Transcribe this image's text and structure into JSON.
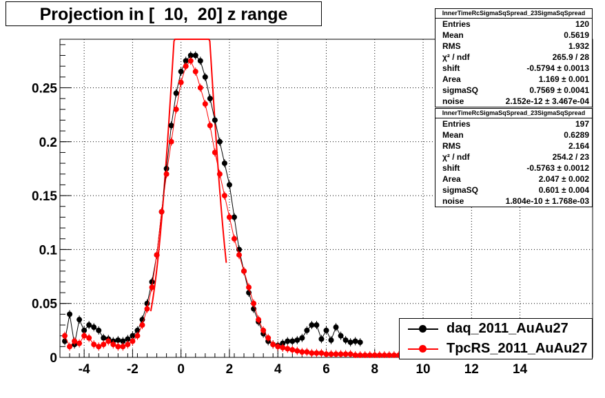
{
  "title": "Projection in [  10,  20] z range",
  "colors": {
    "series1": "#000000",
    "series2": "#ff0000",
    "fit2": "#ff0000"
  },
  "stats": [
    {
      "header": "InnerTimeRcSigmaSqSpread_23SigmaSqSpread",
      "rows": [
        {
          "key": "Entries",
          "value": "120"
        },
        {
          "key": "Mean",
          "value": "0.5619"
        },
        {
          "key": "RMS",
          "value": "1.932"
        },
        {
          "key": "χ² / ndf",
          "value": "265.9 / 28"
        },
        {
          "key": "shift",
          "value": "-0.5794 ± 0.0013"
        },
        {
          "key": "Area",
          "value": "1.169 ± 0.001"
        },
        {
          "key": "sigmaSQ",
          "value": "0.7569 ± 0.0041"
        },
        {
          "key": "noise",
          "value": "2.152e-12 ± 3.467e-04"
        }
      ]
    },
    {
      "header": "InnerTimeRcSigmaSqSpread_23SigmaSqSpread",
      "rows": [
        {
          "key": "Entries",
          "value": "197"
        },
        {
          "key": "Mean",
          "value": "0.6289"
        },
        {
          "key": "RMS",
          "value": "2.164"
        },
        {
          "key": "χ² / ndf",
          "value": "254.2 / 23"
        },
        {
          "key": "shift",
          "value": "-0.5763 ± 0.0012"
        },
        {
          "key": "Area",
          "value": "2.047 ± 0.002"
        },
        {
          "key": "sigmaSQ",
          "value": "0.601 ± 0.004"
        },
        {
          "key": "noise",
          "value": "1.804e-10 ± 1.768e-03"
        }
      ]
    }
  ],
  "legend": [
    {
      "label": "daq_2011_AuAu27"
    },
    {
      "label": "TpcRS_2011_AuAu27"
    }
  ],
  "chart_data": {
    "type": "scatter",
    "title": "Projection in [  10,  20] z range",
    "xlim": [
      -5,
      17
    ],
    "ylim": [
      0,
      0.295
    ],
    "x_ticks": [
      -4,
      -2,
      0,
      2,
      4,
      6,
      8,
      10,
      12,
      14
    ],
    "x_tick_labels": [
      "-4",
      "-2",
      "0",
      "2",
      "4",
      "6",
      "8",
      "10",
      "12",
      "14"
    ],
    "y_ticks": [
      0,
      0.05,
      0.1,
      0.15,
      0.2,
      0.25
    ],
    "y_tick_labels": [
      "0",
      "0.05",
      "0.1",
      "0.15",
      "0.2",
      "0.25"
    ],
    "grid": true,
    "legend_position": "bottom-right",
    "series": [
      {
        "name": "daq_2011_AuAu27",
        "color": "#000000",
        "x": [
          -4.8,
          -4.6,
          -4.4,
          -4.2,
          -4.0,
          -3.8,
          -3.6,
          -3.4,
          -3.2,
          -3.0,
          -2.8,
          -2.6,
          -2.4,
          -2.2,
          -2.0,
          -1.8,
          -1.6,
          -1.4,
          -1.2,
          -1.0,
          -0.8,
          -0.6,
          -0.4,
          -0.2,
          0.0,
          0.2,
          0.4,
          0.6,
          0.8,
          1.0,
          1.2,
          1.4,
          1.6,
          1.8,
          2.0,
          2.2,
          2.4,
          2.6,
          2.8,
          3.0,
          3.2,
          3.4,
          3.6,
          3.8,
          4.0,
          4.2,
          4.4,
          4.6,
          4.8,
          5.0,
          5.2,
          5.4,
          5.6,
          5.8,
          6.0,
          6.2,
          6.4,
          6.6,
          6.8,
          7.0,
          7.2,
          7.4
        ],
        "y": [
          0.015,
          0.04,
          0.012,
          0.035,
          0.025,
          0.03,
          0.028,
          0.025,
          0.018,
          0.017,
          0.015,
          0.016,
          0.015,
          0.017,
          0.02,
          0.025,
          0.035,
          0.05,
          0.07,
          0.095,
          0.135,
          0.175,
          0.215,
          0.245,
          0.265,
          0.275,
          0.28,
          0.28,
          0.275,
          0.26,
          0.24,
          0.22,
          0.2,
          0.18,
          0.16,
          0.13,
          0.1,
          0.08,
          0.06,
          0.045,
          0.033,
          0.022,
          0.015,
          0.012,
          0.011,
          0.013,
          0.015,
          0.015,
          0.016,
          0.018,
          0.025,
          0.03,
          0.03,
          0.017,
          0.025,
          0.016,
          0.028,
          0.02,
          0.016,
          0.014,
          0.015,
          0.014
        ]
      },
      {
        "name": "TpcRS_2011_AuAu27",
        "color": "#ff0000",
        "x": [
          -4.8,
          -4.6,
          -4.4,
          -4.2,
          -4.0,
          -3.8,
          -3.6,
          -3.4,
          -3.2,
          -3.0,
          -2.8,
          -2.6,
          -2.4,
          -2.2,
          -2.0,
          -1.8,
          -1.6,
          -1.4,
          -1.2,
          -1.0,
          -0.8,
          -0.6,
          -0.4,
          -0.2,
          0.0,
          0.2,
          0.4,
          0.6,
          0.8,
          1.0,
          1.2,
          1.4,
          1.6,
          1.8,
          2.0,
          2.2,
          2.4,
          2.6,
          2.8,
          3.0,
          3.2,
          3.4,
          3.6,
          3.8,
          4.0,
          4.2,
          4.4,
          4.6,
          4.8,
          5.0,
          5.2,
          5.4,
          5.6,
          5.8,
          6.0,
          6.2,
          6.4,
          6.6,
          6.8,
          7.0,
          7.2,
          7.4,
          7.6,
          7.8,
          8.0,
          8.2,
          8.4,
          8.6,
          8.8,
          9.0,
          9.2,
          9.4,
          9.6,
          9.8,
          10.0,
          10.2,
          10.4,
          10.6,
          10.8,
          11.0,
          11.2,
          11.4,
          11.6,
          11.8,
          12.0,
          12.2,
          12.4,
          12.6,
          12.8,
          13.0,
          13.2,
          13.4,
          13.6,
          13.8,
          14.0,
          14.2,
          14.4,
          14.6,
          14.8
        ],
        "y": [
          0.02,
          0.01,
          0.015,
          0.013,
          0.02,
          0.018,
          0.012,
          0.01,
          0.012,
          0.015,
          0.012,
          0.01,
          0.01,
          0.012,
          0.015,
          0.02,
          0.03,
          0.045,
          0.065,
          0.095,
          0.135,
          0.17,
          0.2,
          0.23,
          0.255,
          0.27,
          0.275,
          0.265,
          0.25,
          0.235,
          0.215,
          0.19,
          0.17,
          0.15,
          0.13,
          0.11,
          0.095,
          0.08,
          0.065,
          0.05,
          0.035,
          0.025,
          0.018,
          0.012,
          0.01,
          0.009,
          0.008,
          0.007,
          0.006,
          0.005,
          0.005,
          0.004,
          0.004,
          0.004,
          0.003,
          0.003,
          0.003,
          0.003,
          0.003,
          0.003,
          0.002,
          0.002,
          0.002,
          0.002,
          0.002,
          0.002,
          0.002,
          0.002,
          0.002,
          0.002,
          0.002,
          0.002,
          0.002,
          0.002,
          0.002,
          0.002,
          0.002,
          0.002,
          0.002,
          0.002,
          0.002,
          0.002,
          0.002,
          0.002,
          0.002,
          0.002,
          0.002,
          0.002,
          0.002,
          0.002,
          0.002,
          0.002,
          0.002,
          0.002,
          0.002,
          0.002,
          0.002,
          0.002,
          0.002
        ]
      }
    ]
  }
}
